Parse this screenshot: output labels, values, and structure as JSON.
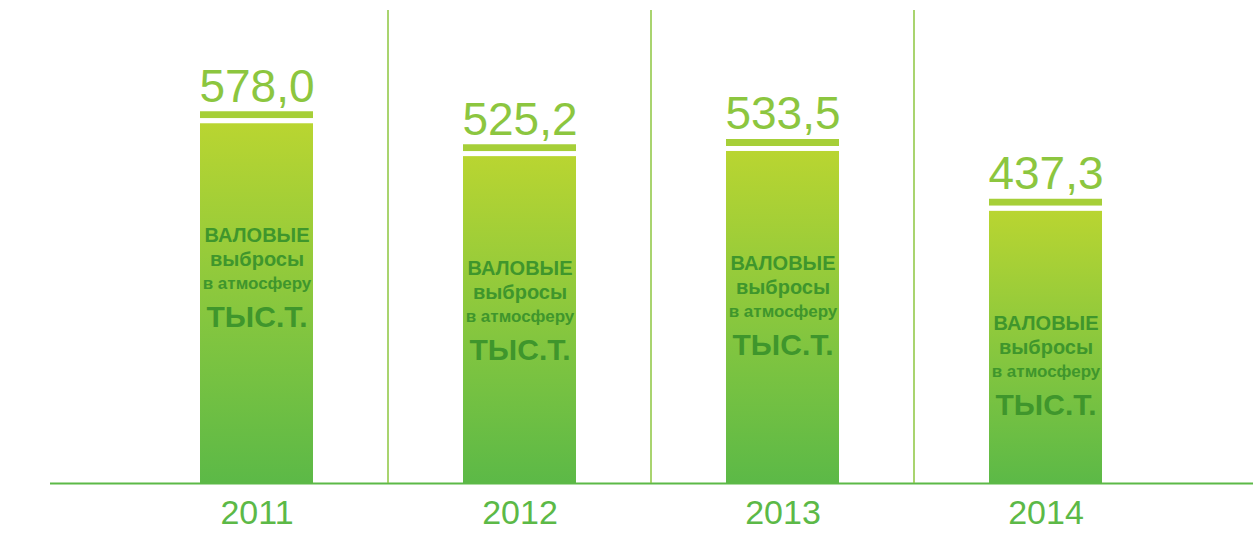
{
  "chart_data": {
    "type": "bar",
    "categories": [
      "2011",
      "2012",
      "2013",
      "2014"
    ],
    "values": [
      578.0,
      525.2,
      533.5,
      437.3
    ],
    "value_labels": [
      "578,0",
      "525,2",
      "533,5",
      "437,3"
    ],
    "data_labels": true,
    "annotations": [
      "ВАЛОВЫЕ",
      "выбросы",
      "в атмосферу",
      "ТЫС.Т."
    ],
    "color": "#5cb947",
    "ylim": [
      0,
      760
    ],
    "tick_labels": "x"
  }
}
